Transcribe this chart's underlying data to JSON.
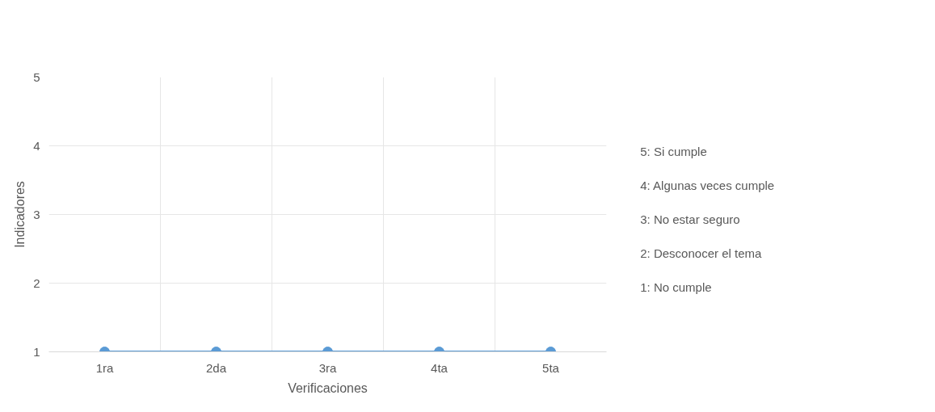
{
  "chart_data": {
    "type": "line",
    "xlabel": "Verificaciones",
    "ylabel": "Indicadores",
    "categories": [
      "1ra",
      "2da",
      "3ra",
      "4ta",
      "5ta"
    ],
    "series": [
      {
        "color": "#5b9bd5",
        "values": [
          1,
          1,
          1,
          1,
          1
        ]
      }
    ],
    "ylim": [
      1,
      5
    ],
    "yticks": [
      1,
      2,
      3,
      4,
      5
    ],
    "grid": true,
    "marker": "circle",
    "line_style": "solid",
    "annotations": [
      "5: Si cumple",
      "4: Algunas veces cumple",
      "3: No estar seguro",
      "2: Desconocer el tema",
      "1: No cumple"
    ]
  }
}
